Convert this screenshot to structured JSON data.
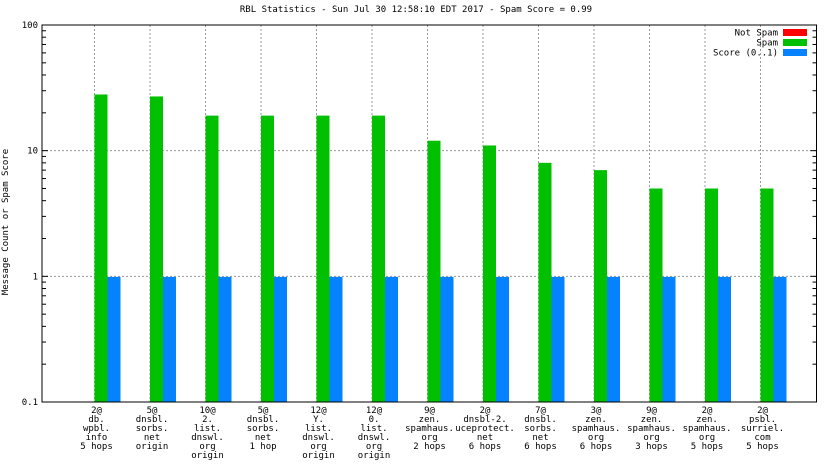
{
  "chart_data": {
    "type": "bar",
    "title": "RBL Statistics - Sun Jul 30 12:58:10 EDT 2017 - Spam Score = 0.99",
    "ylabel": "Message Count or Spam Score",
    "xlabel": "",
    "y_scale": "log",
    "ylim": [
      0.1,
      100
    ],
    "y_ticks": [
      {
        "v": 100,
        "label": "100"
      },
      {
        "v": 10,
        "label": "10"
      },
      {
        "v": 1,
        "label": "1"
      },
      {
        "v": 0.1,
        "label": "0.1"
      }
    ],
    "grid": true,
    "legend_position": "top-right-inside",
    "categories": [
      [
        "2@",
        "db.",
        "wpbl.",
        "info",
        "5 hops"
      ],
      [
        "5@",
        "dnsbl.",
        "sorbs.",
        "net",
        "origin"
      ],
      [
        "10@",
        "2.",
        "list.",
        "dnswl.",
        "org",
        "origin"
      ],
      [
        "5@",
        "dnsbl.",
        "sorbs.",
        "net",
        "1 hop"
      ],
      [
        "12@",
        "Y.",
        "list.",
        "dnswl.",
        "org",
        "origin"
      ],
      [
        "12@",
        "0.",
        "list.",
        "dnswl.",
        "org",
        "origin"
      ],
      [
        "9@",
        "zen.",
        "spamhaus.",
        "org",
        "2 hops"
      ],
      [
        "2@",
        "dnsbl-2.",
        "uceprotect.",
        "net",
        "6 hops"
      ],
      [
        "7@",
        "dnsbl.",
        "sorbs.",
        "net",
        "6 hops"
      ],
      [
        "3@",
        "zen.",
        "spamhaus.",
        "org",
        "6 hops"
      ],
      [
        "9@",
        "zen.",
        "spamhaus.",
        "org",
        "3 hops"
      ],
      [
        "2@",
        "zen.",
        "spamhaus.",
        "org",
        "5 hops"
      ],
      [
        "2@",
        "psbl.",
        "surriel.",
        "com",
        "5 hops"
      ]
    ],
    "series": [
      {
        "name": "Not Spam",
        "color": "#ff0000",
        "values": [
          0,
          0,
          0,
          0,
          0,
          0,
          0,
          0,
          0,
          0,
          0,
          0,
          0
        ]
      },
      {
        "name": "Spam",
        "color": "#00c000",
        "values": [
          28,
          27,
          19,
          19,
          19,
          19,
          12,
          11,
          8,
          7,
          5,
          5,
          5
        ]
      },
      {
        "name": "Score (0..1)",
        "color": "#0482ff",
        "values": [
          0.99,
          0.99,
          0.99,
          0.99,
          0.99,
          0.99,
          0.99,
          0.99,
          0.99,
          0.99,
          0.99,
          0.99,
          0.99
        ]
      }
    ]
  },
  "colors": {
    "background": "#ffffff",
    "border": "#000000",
    "grid": "#999999",
    "text": "#000000"
  }
}
